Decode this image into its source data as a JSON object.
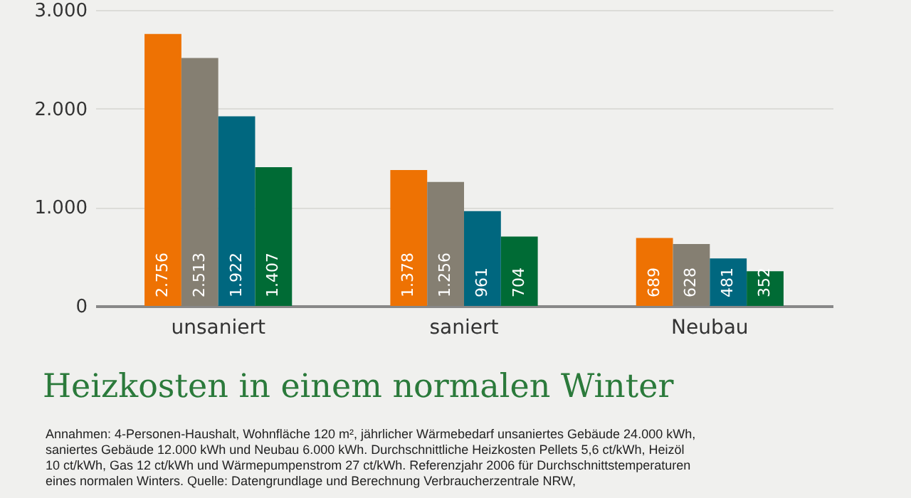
{
  "chart_data": {
    "type": "bar",
    "title": "Heizkosten in einem normalen Winter",
    "categories": [
      "unsaniert",
      "saniert",
      "Neubau"
    ],
    "series": [
      {
        "color": "#ee7203",
        "values": [
          2756,
          1378,
          689
        ],
        "value_labels": [
          "2.756",
          "1.378",
          "689"
        ]
      },
      {
        "color": "#857f72",
        "values": [
          2513,
          1256,
          628
        ],
        "value_labels": [
          "2.513",
          "1.256",
          "628"
        ]
      },
      {
        "color": "#00677f",
        "values": [
          1922,
          961,
          481
        ],
        "value_labels": [
          "1.922",
          "961",
          "481"
        ]
      },
      {
        "color": "#006b35",
        "values": [
          1407,
          704,
          352
        ],
        "value_labels": [
          "1.407",
          "704",
          "352"
        ]
      }
    ],
    "ylim": [
      0,
      3000
    ],
    "yticks": [
      {
        "value": 0,
        "label": "0"
      },
      {
        "value": 1000,
        "label": "1.000"
      },
      {
        "value": 2000,
        "label": "2.000"
      },
      {
        "value": 3000,
        "label": "3.000"
      }
    ],
    "grid": "y",
    "annotations": [
      "Annahmen: 4-Personen-Haushalt, Wohnfläche 120 m², jährlicher Wärmebedarf unsaniertes Gebäude 24.000 kWh,",
      "saniertes Gebäude 12.000 kWh und Neubau 6.000 kWh. Durchschnittliche Heizkosten Pellets 5,6 ct/kWh, Heizöl",
      "10 ct/kWh, Gas 12 ct/kWh und Wärmepumpenstrom 27 ct/kWh. Referenzjahr 2006 für Durchschnittstemperaturen",
      "eines normalen Winters. Quelle: Datengrundlage und Berechnung Verbraucherzentrale NRW,"
    ]
  }
}
